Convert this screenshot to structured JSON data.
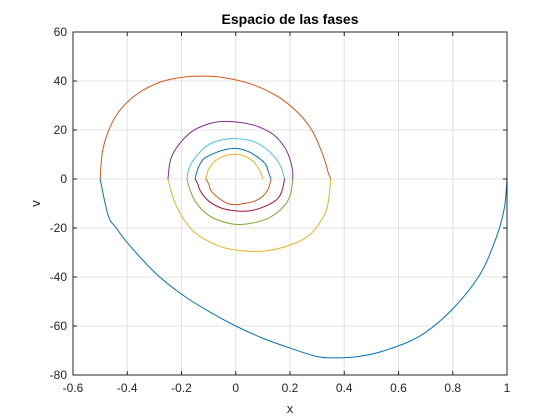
{
  "chart_data": {
    "type": "line",
    "title": "Espacio de las fases",
    "xlabel": "x",
    "ylabel": "v",
    "xlim": [
      -0.6,
      1
    ],
    "ylim": [
      -80,
      60
    ],
    "xticks": [
      -0.6,
      -0.4,
      -0.2,
      0,
      0.2,
      0.4,
      0.6,
      0.8,
      1
    ],
    "yticks": [
      -80,
      -60,
      -40,
      -20,
      0,
      20,
      40,
      60
    ],
    "xtick_labels": [
      "-0.6",
      "-0.4",
      "-0.2",
      "0",
      "0.2",
      "0.4",
      "0.6",
      "0.8",
      "1"
    ],
    "ytick_labels": [
      "-80",
      "-60",
      "-40",
      "-20",
      "0",
      "20",
      "40",
      "60"
    ],
    "grid": true,
    "series": [
      {
        "color": "#0072BD",
        "x": [
          1.0,
          0.99,
          0.96,
          0.9,
          0.8,
          0.68,
          0.55,
          0.45,
          0.37,
          0.3,
          0.2,
          0.1,
          0.0,
          -0.1,
          -0.2,
          -0.3,
          -0.4,
          -0.44,
          -0.47,
          -0.5
        ],
        "y": [
          0,
          -12,
          -24,
          -39,
          -53,
          -64,
          -70,
          -72.5,
          -73,
          -72.5,
          -69,
          -65,
          -60,
          -54,
          -47,
          -38,
          -26,
          -20,
          -15,
          0
        ]
      },
      {
        "color": "#D95319",
        "x": [
          -0.5,
          -0.49,
          -0.46,
          -0.42,
          -0.36,
          -0.28,
          -0.2,
          -0.12,
          -0.05,
          0.05,
          0.15,
          0.23,
          0.28,
          0.31,
          0.33,
          0.34,
          0.35
        ],
        "y": [
          0,
          12,
          22,
          29,
          35,
          39.5,
          41.5,
          42,
          41.5,
          39,
          34,
          27,
          20,
          13,
          7,
          3,
          0
        ]
      },
      {
        "color": "#EDB120",
        "x": [
          0.35,
          0.34,
          0.32,
          0.27,
          0.2,
          0.1,
          0.0,
          -0.07,
          -0.15,
          -0.2,
          -0.23,
          -0.25
        ],
        "y": [
          0,
          -10,
          -16,
          -23,
          -27,
          -29.5,
          -29,
          -27,
          -22,
          -15,
          -8,
          0
        ]
      },
      {
        "color": "#7E2F8E",
        "x": [
          -0.25,
          -0.24,
          -0.21,
          -0.16,
          -0.1,
          -0.04,
          0.02,
          0.08,
          0.14,
          0.18,
          0.2,
          0.21,
          0.21
        ],
        "y": [
          0,
          8,
          14,
          19.5,
          22.5,
          23.5,
          23,
          21.5,
          18,
          13,
          8,
          3,
          0
        ]
      },
      {
        "color": "#77AC30",
        "x": [
          0.21,
          0.2,
          0.17,
          0.12,
          0.06,
          0.0,
          -0.06,
          -0.11,
          -0.15,
          -0.17,
          -0.18
        ],
        "y": [
          0,
          -7,
          -12,
          -16,
          -18,
          -18.5,
          -17,
          -14,
          -9,
          -4,
          0
        ]
      },
      {
        "color": "#4DBEEE",
        "x": [
          -0.18,
          -0.17,
          -0.14,
          -0.1,
          -0.05,
          0.0,
          0.06,
          0.11,
          0.15,
          0.17,
          0.18
        ],
        "y": [
          0,
          5,
          10,
          14,
          16,
          16.5,
          15.5,
          12.5,
          8,
          4,
          0
        ]
      },
      {
        "color": "#A2142F",
        "x": [
          0.18,
          0.17,
          0.15,
          0.1,
          0.05,
          0.0,
          -0.05,
          -0.1,
          -0.13,
          -0.14,
          -0.15
        ],
        "y": [
          0,
          -5,
          -8.5,
          -11.5,
          -13,
          -13,
          -12,
          -9,
          -5,
          -2,
          0
        ]
      },
      {
        "color": "#0072BD",
        "x": [
          -0.15,
          -0.14,
          -0.12,
          -0.08,
          -0.04,
          0.0,
          0.04,
          0.08,
          0.11,
          0.12,
          0.13
        ],
        "y": [
          0,
          4,
          8,
          10.5,
          12,
          12.5,
          11.5,
          9,
          6,
          3,
          0
        ]
      },
      {
        "color": "#D95319",
        "x": [
          0.13,
          0.12,
          0.1,
          0.07,
          0.03,
          0.0,
          -0.03,
          -0.06,
          -0.09,
          -0.1,
          -0.11
        ],
        "y": [
          0,
          -4,
          -7,
          -9,
          -10,
          -10.5,
          -10,
          -8,
          -5,
          -2,
          0
        ]
      },
      {
        "color": "#EDB120",
        "x": [
          -0.11,
          -0.1,
          -0.08,
          -0.05,
          -0.02,
          0.01,
          0.04,
          0.07,
          0.09,
          0.1
        ],
        "y": [
          0,
          4,
          7,
          9,
          10,
          10,
          9,
          6.5,
          3,
          0
        ]
      }
    ]
  }
}
